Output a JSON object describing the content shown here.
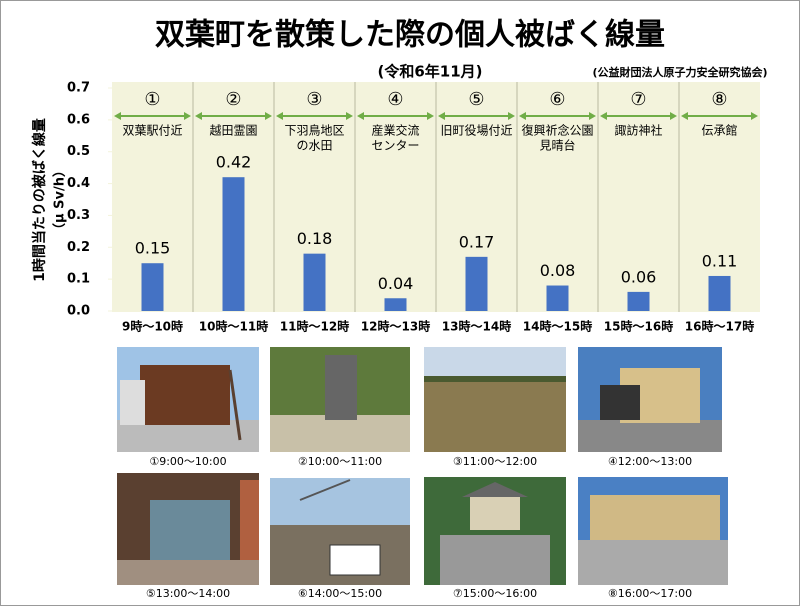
{
  "chart_data": {
    "type": "bar",
    "title": "双葉町を散策した際の個人被ばく線量",
    "subtitle": "(令和6年11月)",
    "source": "(公益財団法人原子力安全研究協会)",
    "y_label": [
      "1時間当たりの被ばく線量",
      "（μ Sv/h）"
    ],
    "markers": [
      "①",
      "②",
      "③",
      "④",
      "⑤",
      "⑥",
      "⑦",
      "⑧"
    ],
    "locations": [
      [
        "双葉駅付近"
      ],
      [
        "越田霊園"
      ],
      [
        "下羽鳥地区",
        "の水田"
      ],
      [
        "産業交流",
        "センター"
      ],
      [
        "旧町役場付近"
      ],
      [
        "復興祈念公園",
        "見晴台"
      ],
      [
        "諏訪神社"
      ],
      [
        "伝承館"
      ]
    ],
    "categories": [
      "9時～10時",
      "10時～11時",
      "11時～12時",
      "12時～13時",
      "13時～14時",
      "14時～15時",
      "15時～16時",
      "16時～17時"
    ],
    "values": [
      0.15,
      0.42,
      0.18,
      0.04,
      0.17,
      0.08,
      0.06,
      0.11
    ],
    "color": "#4472c4",
    "ylim": [
      0,
      0.7
    ],
    "yticks": [
      {
        "value": 0,
        "label": "0.0"
      },
      0.1,
      0.2,
      0.3,
      0.4,
      0.5,
      0.6,
      0.7
    ]
  },
  "photos": {
    "captions": [
      "①9:00～10:00",
      "②10:00～11:00",
      "③11:00～12:00",
      "④12:00～13:00",
      "⑤13:00～14:00",
      "⑥14:00～15:00",
      "⑦15:00～16:00",
      "⑧16:00～17:00"
    ]
  }
}
